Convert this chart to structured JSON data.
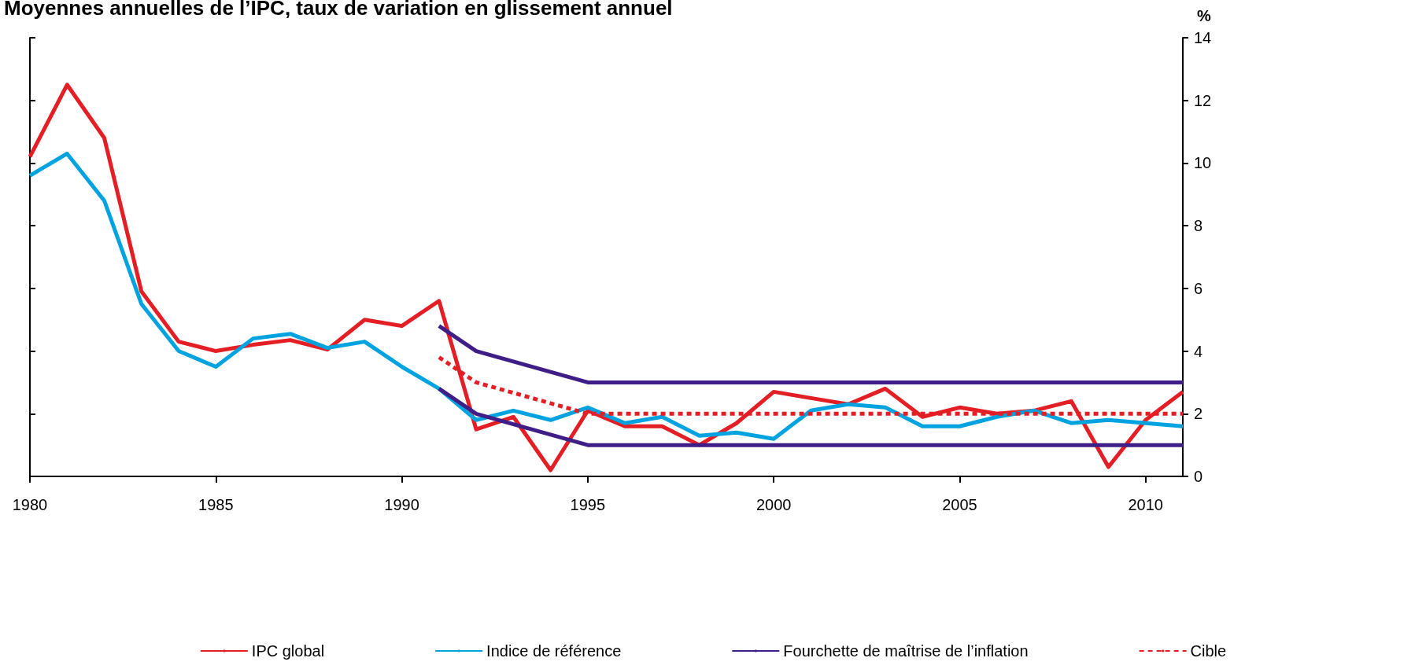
{
  "chart_data": {
    "type": "line",
    "title": "Moyennes annuelles de l’IPC, taux de variation en glissement annuel",
    "ylabel": "%",
    "x": [
      1980,
      1981,
      1982,
      1983,
      1984,
      1985,
      1986,
      1987,
      1988,
      1989,
      1990,
      1991,
      1992,
      1993,
      1994,
      1995,
      1996,
      1997,
      1998,
      1999,
      2000,
      2001,
      2002,
      2003,
      2004,
      2005,
      2006,
      2007,
      2008,
      2009,
      2010,
      2011
    ],
    "series": [
      {
        "name": "IPC global",
        "color": "#e31e24",
        "values": [
          10.2,
          12.5,
          10.8,
          5.9,
          4.3,
          4.0,
          4.2,
          4.35,
          4.05,
          5.0,
          4.8,
          5.6,
          1.5,
          1.9,
          0.2,
          2.1,
          1.6,
          1.6,
          1.0,
          1.7,
          2.7,
          2.5,
          2.3,
          2.8,
          1.9,
          2.2,
          2.0,
          2.1,
          2.4,
          0.3,
          1.8,
          2.7
        ]
      },
      {
        "name": "Indice de référence",
        "color": "#00a3e0",
        "values": [
          9.6,
          10.3,
          8.8,
          5.5,
          4.0,
          3.5,
          4.4,
          4.55,
          4.1,
          4.3,
          3.5,
          2.8,
          1.8,
          2.1,
          1.8,
          2.2,
          1.7,
          1.9,
          1.3,
          1.4,
          1.2,
          2.1,
          2.3,
          2.2,
          1.6,
          1.6,
          1.9,
          2.1,
          1.7,
          1.8,
          1.7,
          1.6
        ]
      },
      {
        "name": "Fourchette de maîtrise de l’inflation",
        "color": "#3f1f87",
        "x": [
          1991,
          1992,
          1995,
          2011
        ],
        "values": [
          4.8,
          4.0,
          3.0,
          3.0
        ]
      },
      {
        "color": "#3f1f87",
        "x": [
          1991,
          1992,
          1995,
          2011
        ],
        "values": [
          2.8,
          2.0,
          1.0,
          1.0
        ]
      },
      {
        "name": "Cible",
        "color": "#e31e24",
        "line_style": "dashed",
        "x": [
          1991,
          1992,
          1995,
          2011
        ],
        "values": [
          3.8,
          3.0,
          2.0,
          2.0
        ]
      }
    ],
    "xlim": [
      1980,
      2011
    ],
    "xticks": [
      1980,
      1985,
      1990,
      1995,
      2000,
      2005,
      2010
    ],
    "ylim": [
      0,
      14
    ],
    "yticks": [
      0,
      2,
      4,
      6,
      8,
      10,
      12,
      14
    ],
    "grid": false,
    "legend": "bottom",
    "marker": "none",
    "line_style": "solid"
  }
}
